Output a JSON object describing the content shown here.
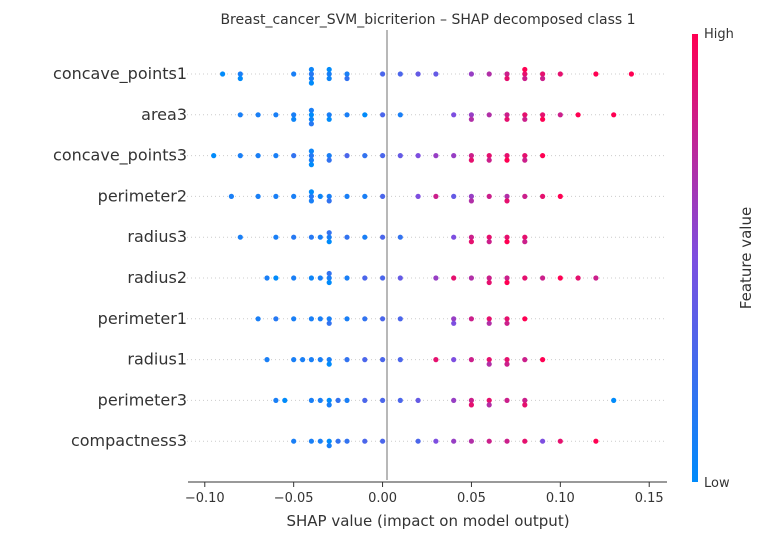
{
  "chart_data": {
    "type": "scatter",
    "subtype": "shap_beeswarm",
    "title": "Breast_cancer_SVM_bicriterion – SHAP decomposed class 1",
    "xlabel": "SHAP value (impact on model output)",
    "xlim": [
      -0.11,
      0.16
    ],
    "xticks": [
      -0.1,
      -0.05,
      0.0,
      0.05,
      0.1,
      0.15
    ],
    "xtick_labels": [
      "−0.10",
      "−0.05",
      "0.00",
      "0.05",
      "0.10",
      "0.15"
    ],
    "features": [
      "concave_points1",
      "area3",
      "concave_points3",
      "perimeter2",
      "radius3",
      "radius2",
      "perimeter1",
      "radius1",
      "perimeter3",
      "compactness3"
    ],
    "colorbar": {
      "label": "Feature value",
      "high_label": "High",
      "low_label": "Low",
      "low_color": "#008bfb",
      "high_color": "#ff0052"
    },
    "zero_line": true,
    "series": [
      {
        "feature": "concave_points1",
        "points": [
          [
            -0.09,
            0.0
          ],
          [
            -0.08,
            0.1
          ],
          [
            -0.08,
            0.0
          ],
          [
            -0.05,
            0.1
          ],
          [
            -0.04,
            0.15
          ],
          [
            -0.04,
            0.1
          ],
          [
            -0.04,
            0.05
          ],
          [
            -0.04,
            0.0
          ],
          [
            -0.03,
            0.1
          ],
          [
            -0.03,
            0.05
          ],
          [
            -0.03,
            0.0
          ],
          [
            -0.02,
            0.1
          ],
          [
            -0.02,
            0.2
          ],
          [
            0.0,
            0.3
          ],
          [
            0.01,
            0.3
          ],
          [
            0.02,
            0.4
          ],
          [
            0.03,
            0.4
          ],
          [
            0.05,
            0.6
          ],
          [
            0.06,
            0.7
          ],
          [
            0.07,
            0.8
          ],
          [
            0.07,
            0.9
          ],
          [
            0.08,
            0.9
          ],
          [
            0.08,
            0.8
          ],
          [
            0.08,
            1.0
          ],
          [
            0.09,
            0.9
          ],
          [
            0.09,
            0.8
          ],
          [
            0.1,
            0.9
          ],
          [
            0.12,
            1.0
          ],
          [
            0.14,
            1.0
          ]
        ]
      },
      {
        "feature": "area3",
        "points": [
          [
            -0.08,
            0.1
          ],
          [
            -0.07,
            0.1
          ],
          [
            -0.06,
            0.1
          ],
          [
            -0.05,
            0.1
          ],
          [
            -0.05,
            0.05
          ],
          [
            -0.04,
            0.0
          ],
          [
            -0.04,
            0.05
          ],
          [
            -0.04,
            0.1
          ],
          [
            -0.04,
            0.15
          ],
          [
            -0.03,
            0.1
          ],
          [
            -0.03,
            0.0
          ],
          [
            -0.02,
            0.1
          ],
          [
            -0.01,
            0.0
          ],
          [
            0.0,
            0.3
          ],
          [
            0.01,
            0.1
          ],
          [
            0.04,
            0.5
          ],
          [
            0.05,
            0.6
          ],
          [
            0.05,
            0.7
          ],
          [
            0.06,
            0.7
          ],
          [
            0.07,
            0.8
          ],
          [
            0.07,
            0.9
          ],
          [
            0.08,
            0.9
          ],
          [
            0.08,
            0.8
          ],
          [
            0.09,
            0.9
          ],
          [
            0.09,
            1.0
          ],
          [
            0.1,
            0.8
          ],
          [
            0.11,
            1.0
          ],
          [
            0.13,
            1.0
          ]
        ]
      },
      {
        "feature": "concave_points3",
        "points": [
          [
            -0.095,
            0.0
          ],
          [
            -0.08,
            0.1
          ],
          [
            -0.07,
            0.1
          ],
          [
            -0.06,
            0.1
          ],
          [
            -0.05,
            0.2
          ],
          [
            -0.04,
            0.15
          ],
          [
            -0.04,
            0.1
          ],
          [
            -0.04,
            0.05
          ],
          [
            -0.04,
            0.0
          ],
          [
            -0.03,
            0.1
          ],
          [
            -0.03,
            0.2
          ],
          [
            -0.02,
            0.3
          ],
          [
            -0.01,
            0.2
          ],
          [
            0.0,
            0.3
          ],
          [
            0.01,
            0.4
          ],
          [
            0.02,
            0.5
          ],
          [
            0.03,
            0.6
          ],
          [
            0.04,
            0.6
          ],
          [
            0.05,
            0.8
          ],
          [
            0.05,
            0.9
          ],
          [
            0.06,
            0.9
          ],
          [
            0.06,
            0.8
          ],
          [
            0.07,
            0.9
          ],
          [
            0.07,
            1.0
          ],
          [
            0.08,
            0.9
          ],
          [
            0.08,
            0.8
          ],
          [
            0.09,
            1.0
          ]
        ]
      },
      {
        "feature": "perimeter2",
        "points": [
          [
            -0.085,
            0.1
          ],
          [
            -0.07,
            0.1
          ],
          [
            -0.06,
            0.1
          ],
          [
            -0.05,
            0.1
          ],
          [
            -0.04,
            0.15
          ],
          [
            -0.04,
            0.1
          ],
          [
            -0.04,
            0.0
          ],
          [
            -0.035,
            0.05
          ],
          [
            -0.03,
            0.1
          ],
          [
            -0.03,
            0.2
          ],
          [
            -0.02,
            0.1
          ],
          [
            -0.01,
            0.1
          ],
          [
            0.0,
            0.3
          ],
          [
            0.02,
            0.5
          ],
          [
            0.03,
            0.8
          ],
          [
            0.04,
            0.4
          ],
          [
            0.05,
            0.6
          ],
          [
            0.05,
            0.7
          ],
          [
            0.06,
            0.8
          ],
          [
            0.07,
            0.7
          ],
          [
            0.07,
            0.9
          ],
          [
            0.08,
            0.8
          ],
          [
            0.09,
            0.9
          ],
          [
            0.1,
            1.0
          ]
        ]
      },
      {
        "feature": "radius3",
        "points": [
          [
            -0.08,
            0.1
          ],
          [
            -0.06,
            0.1
          ],
          [
            -0.05,
            0.15
          ],
          [
            -0.04,
            0.15
          ],
          [
            -0.035,
            0.1
          ],
          [
            -0.03,
            0.1
          ],
          [
            -0.03,
            0.0
          ],
          [
            -0.03,
            0.2
          ],
          [
            -0.02,
            0.2
          ],
          [
            -0.01,
            0.1
          ],
          [
            0.0,
            0.3
          ],
          [
            0.01,
            0.2
          ],
          [
            0.04,
            0.5
          ],
          [
            0.05,
            0.8
          ],
          [
            0.05,
            0.9
          ],
          [
            0.06,
            0.9
          ],
          [
            0.06,
            0.8
          ],
          [
            0.07,
            0.9
          ],
          [
            0.07,
            1.0
          ],
          [
            0.08,
            0.9
          ],
          [
            0.08,
            0.8
          ]
        ]
      },
      {
        "feature": "radius2",
        "points": [
          [
            -0.065,
            0.1
          ],
          [
            -0.06,
            0.0
          ],
          [
            -0.05,
            0.1
          ],
          [
            -0.04,
            0.05
          ],
          [
            -0.035,
            0.1
          ],
          [
            -0.03,
            0.1
          ],
          [
            -0.03,
            0.0
          ],
          [
            -0.03,
            0.2
          ],
          [
            -0.02,
            0.1
          ],
          [
            -0.01,
            0.3
          ],
          [
            0.0,
            0.3
          ],
          [
            0.01,
            0.4
          ],
          [
            0.03,
            0.6
          ],
          [
            0.04,
            0.9
          ],
          [
            0.05,
            0.7
          ],
          [
            0.06,
            0.8
          ],
          [
            0.06,
            0.9
          ],
          [
            0.07,
            0.8
          ],
          [
            0.07,
            1.0
          ],
          [
            0.08,
            0.9
          ],
          [
            0.09,
            0.8
          ],
          [
            0.1,
            1.0
          ],
          [
            0.11,
            0.9
          ],
          [
            0.12,
            0.8
          ]
        ]
      },
      {
        "feature": "perimeter1",
        "points": [
          [
            -0.07,
            0.1
          ],
          [
            -0.06,
            0.15
          ],
          [
            -0.05,
            0.1
          ],
          [
            -0.04,
            0.1
          ],
          [
            -0.035,
            0.1
          ],
          [
            -0.03,
            0.1
          ],
          [
            -0.03,
            0.2
          ],
          [
            -0.02,
            0.1
          ],
          [
            -0.01,
            0.2
          ],
          [
            0.0,
            0.3
          ],
          [
            0.01,
            0.3
          ],
          [
            0.04,
            0.6
          ],
          [
            0.04,
            0.5
          ],
          [
            0.05,
            0.8
          ],
          [
            0.06,
            0.9
          ],
          [
            0.06,
            0.7
          ],
          [
            0.07,
            0.9
          ],
          [
            0.07,
            0.8
          ],
          [
            0.08,
            1.0
          ]
        ]
      },
      {
        "feature": "radius1",
        "points": [
          [
            -0.065,
            0.1
          ],
          [
            -0.05,
            0.1
          ],
          [
            -0.045,
            0.1
          ],
          [
            -0.04,
            0.1
          ],
          [
            -0.035,
            0.1
          ],
          [
            -0.03,
            0.1
          ],
          [
            -0.03,
            0.0
          ],
          [
            -0.02,
            0.2
          ],
          [
            -0.01,
            0.3
          ],
          [
            0.0,
            0.3
          ],
          [
            0.01,
            0.3
          ],
          [
            0.03,
            0.9
          ],
          [
            0.04,
            0.5
          ],
          [
            0.05,
            0.8
          ],
          [
            0.06,
            0.9
          ],
          [
            0.06,
            0.7
          ],
          [
            0.07,
            0.9
          ],
          [
            0.07,
            0.8
          ],
          [
            0.08,
            0.8
          ],
          [
            0.09,
            1.0
          ]
        ]
      },
      {
        "feature": "perimeter3",
        "points": [
          [
            -0.06,
            0.1
          ],
          [
            -0.055,
            0.0
          ],
          [
            -0.04,
            0.1
          ],
          [
            -0.035,
            0.1
          ],
          [
            -0.03,
            0.0
          ],
          [
            -0.03,
            0.1
          ],
          [
            -0.025,
            0.2
          ],
          [
            -0.02,
            0.1
          ],
          [
            -0.01,
            0.3
          ],
          [
            0.0,
            0.3
          ],
          [
            0.01,
            0.3
          ],
          [
            0.02,
            0.4
          ],
          [
            0.04,
            0.6
          ],
          [
            0.05,
            0.8
          ],
          [
            0.05,
            0.9
          ],
          [
            0.06,
            0.9
          ],
          [
            0.06,
            0.7
          ],
          [
            0.07,
            0.8
          ],
          [
            0.08,
            0.8
          ],
          [
            0.08,
            0.9
          ],
          [
            0.13,
            0.0
          ]
        ]
      },
      {
        "feature": "compactness3",
        "points": [
          [
            -0.05,
            0.1
          ],
          [
            -0.04,
            0.1
          ],
          [
            -0.035,
            0.1
          ],
          [
            -0.03,
            0.0
          ],
          [
            -0.03,
            0.1
          ],
          [
            -0.025,
            0.2
          ],
          [
            -0.02,
            0.2
          ],
          [
            -0.01,
            0.3
          ],
          [
            0.0,
            0.3
          ],
          [
            0.02,
            0.3
          ],
          [
            0.03,
            0.5
          ],
          [
            0.04,
            0.6
          ],
          [
            0.05,
            0.7
          ],
          [
            0.06,
            0.8
          ],
          [
            0.07,
            0.8
          ],
          [
            0.08,
            0.9
          ],
          [
            0.09,
            0.5
          ],
          [
            0.1,
            0.9
          ],
          [
            0.12,
            1.0
          ]
        ]
      }
    ]
  }
}
